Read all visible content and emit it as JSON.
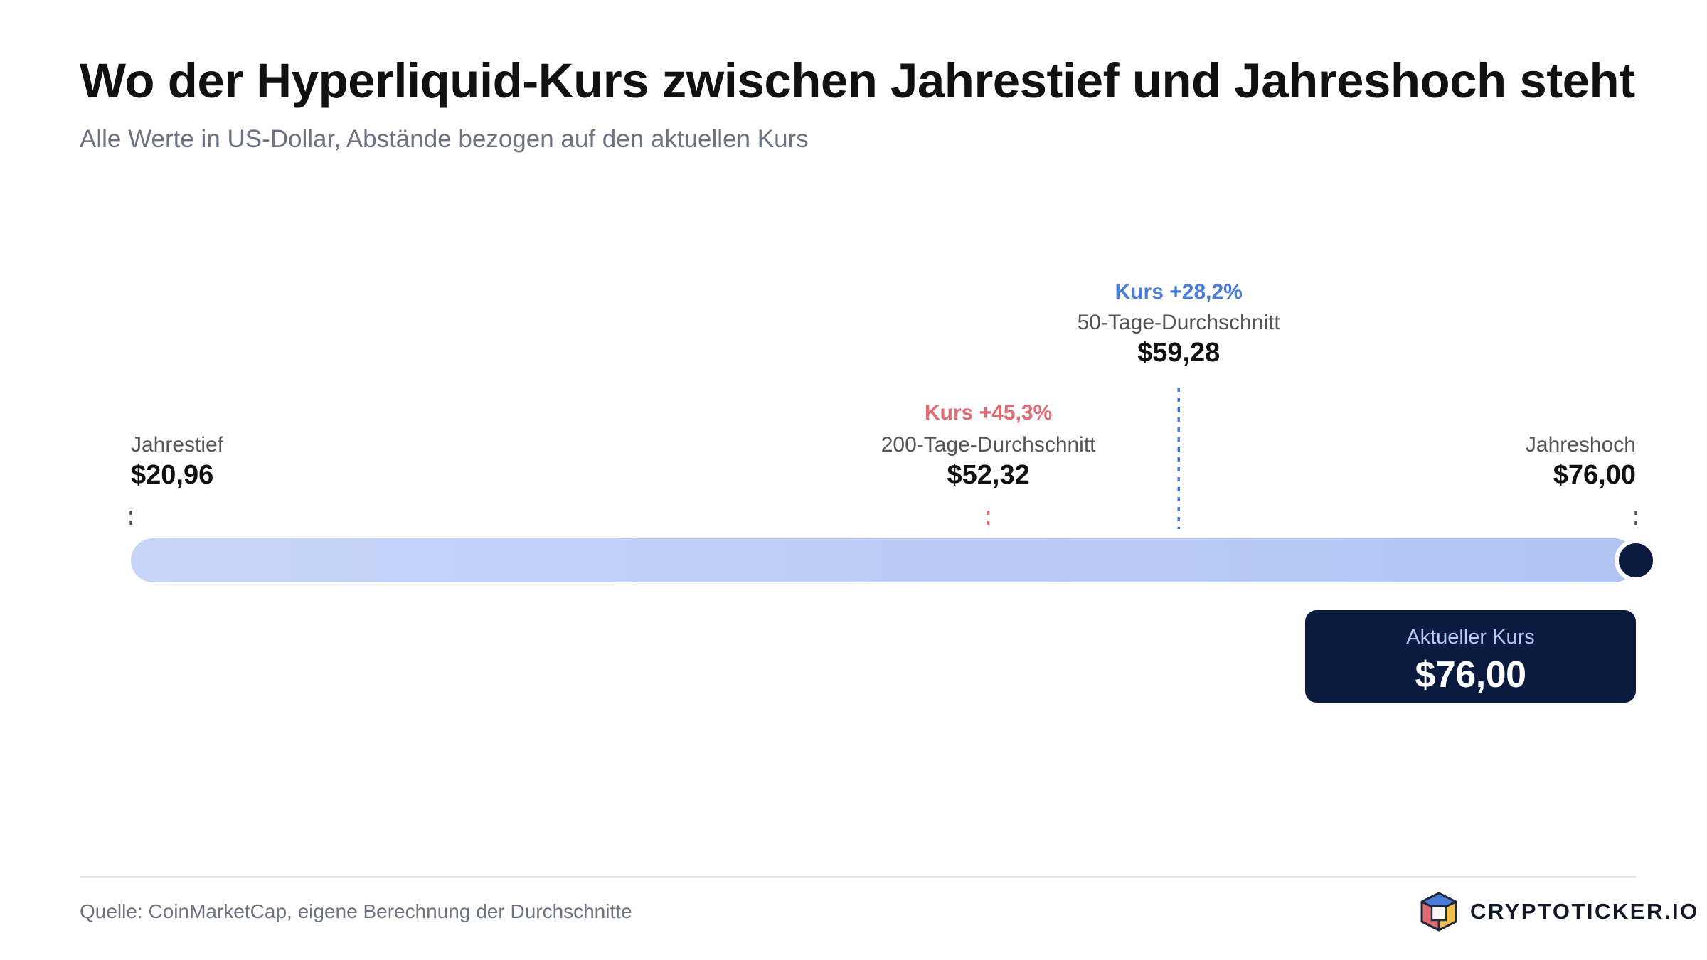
{
  "header": {
    "title": "Wo der Hyperliquid-Kurs zwischen Jahrestief und Jahreshoch steht",
    "subtitle": "Alle Werte in US-Dollar, Abstände bezogen auf den aktuellen Kurs"
  },
  "chart_data": {
    "type": "range",
    "unit": "US-Dollar",
    "range": [
      20.96,
      76.0
    ],
    "markers": [
      {
        "id": "low",
        "label": "Jahrestief",
        "value": 20.96,
        "value_text": "$20,96",
        "align": "start",
        "tier": "low"
      },
      {
        "id": "ma200",
        "label": "200-Tage-Durchschnitt",
        "value": 52.32,
        "value_text": "$52,32",
        "delta_text": "Kurs +45,3%",
        "align": "middle",
        "tier": "low"
      },
      {
        "id": "ma50",
        "label": "50-Tage-Durchschnitt",
        "value": 59.28,
        "value_text": "$59,28",
        "delta_text": "Kurs +28,2%",
        "align": "middle",
        "tier": "high"
      },
      {
        "id": "high",
        "label": "Jahreshoch",
        "value": 76.0,
        "value_text": "$76,00",
        "align": "end",
        "tier": "low"
      }
    ],
    "current": {
      "label": "Aktueller Kurs",
      "value": 76.0,
      "value_text": "$76,00"
    }
  },
  "footer": {
    "source": "Quelle: CoinMarketCap, eigene Berechnung der Durchschnitte",
    "brand": "CRYPTOTICKER.IO"
  },
  "colors": {
    "bar_start": "#c7d5f9",
    "bar_end": "#b1c4f3",
    "ma200": "#e06b73",
    "ma50": "#4a7bd8",
    "neutral_tick": "#555555",
    "current_dot": "#0b1a3f",
    "callout_bg": "#0b1a3f",
    "callout_label": "#b9c8f5"
  }
}
